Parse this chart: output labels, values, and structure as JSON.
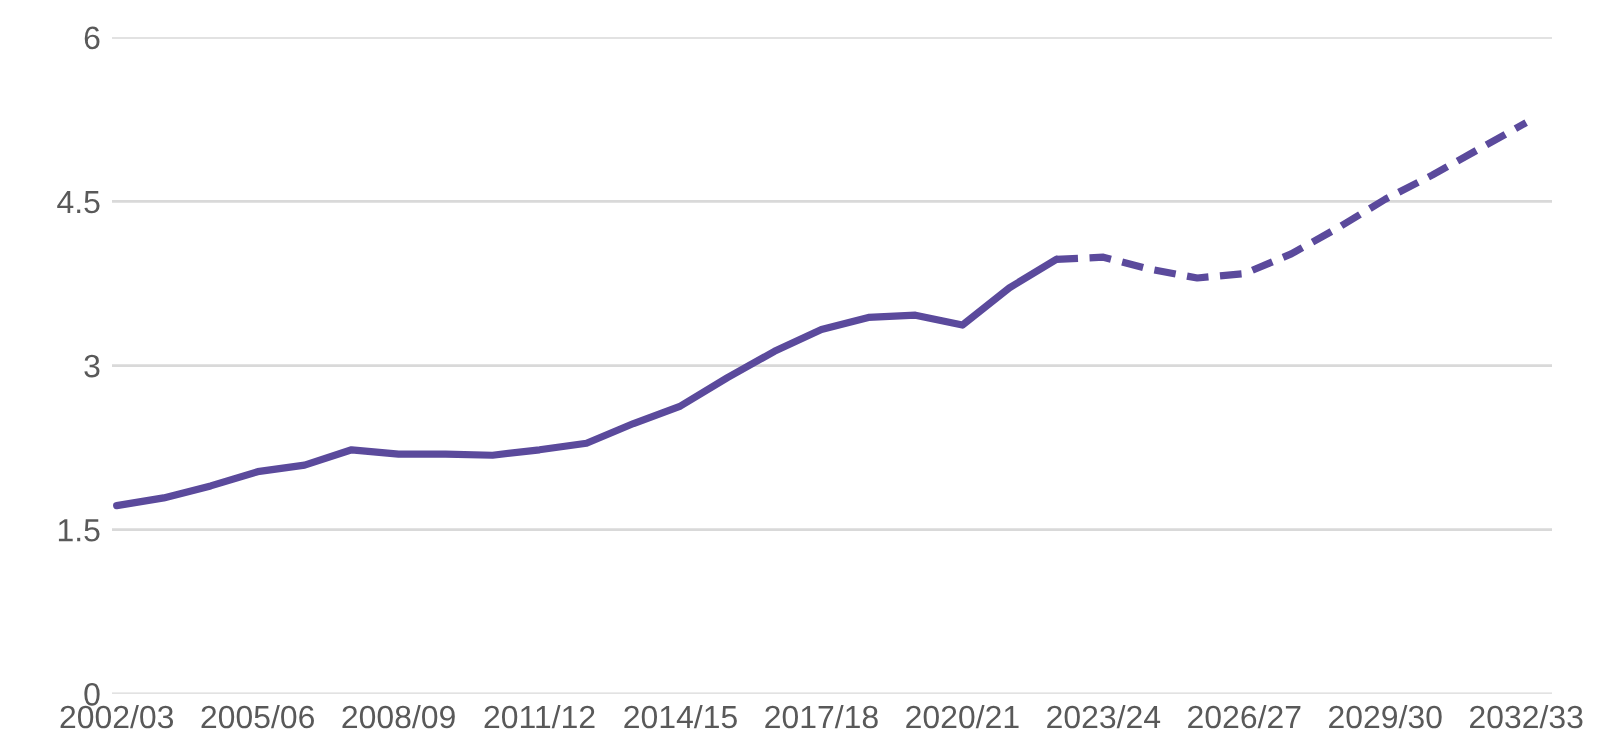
{
  "chart_data": {
    "type": "line",
    "categories": [
      "2002/03",
      null,
      null,
      "2005/06",
      null,
      null,
      "2008/09",
      null,
      null,
      "2011/12",
      null,
      null,
      "2014/15",
      null,
      null,
      "2017/18",
      null,
      null,
      "2020/21",
      null,
      null,
      "2023/24",
      null,
      null,
      "2026/27",
      null,
      null,
      "2029/30",
      null,
      null,
      "2032/33"
    ],
    "series": [
      {
        "color": "#5b4a9c",
        "line_style": "solid",
        "values": [
          1.72,
          1.79,
          1.9,
          2.03,
          2.09,
          2.23,
          2.19,
          2.19,
          2.18,
          2.23,
          2.29,
          2.47,
          2.63,
          2.89,
          3.13,
          3.33,
          3.44,
          3.46,
          3.37,
          3.71,
          3.97,
          null,
          null,
          null,
          null,
          null,
          null,
          null,
          null,
          null,
          null
        ]
      },
      {
        "color": "#5b4a9c",
        "line_style": "dashed",
        "values": [
          null,
          null,
          null,
          null,
          null,
          null,
          null,
          null,
          null,
          null,
          null,
          null,
          null,
          null,
          null,
          null,
          null,
          null,
          null,
          null,
          3.97,
          3.99,
          3.88,
          3.8,
          3.84,
          4.02,
          4.26,
          4.52,
          4.74,
          4.98,
          5.22
        ]
      }
    ],
    "ylim": [
      0,
      6
    ],
    "yticks": [
      0,
      1.5,
      3,
      4.5,
      6
    ],
    "grid": "y",
    "legend": false,
    "marker": "none"
  }
}
